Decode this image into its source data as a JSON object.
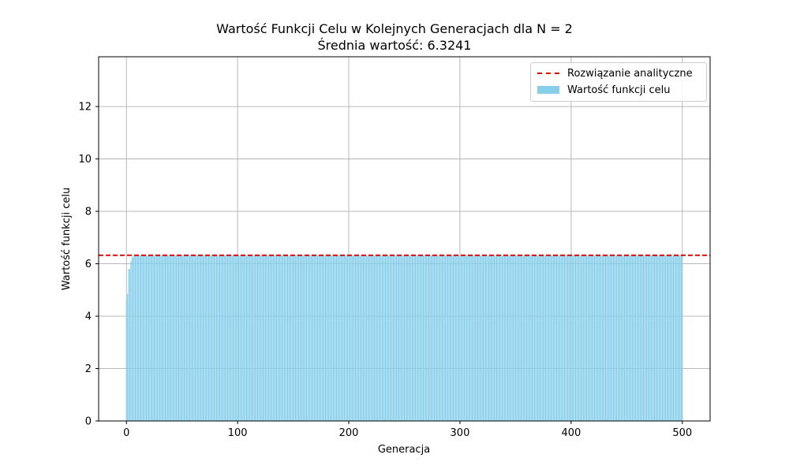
{
  "chart_data": {
    "type": "bar",
    "title": "Wartość Funkcji Celu w Kolejnych Generacjach dla N = 2",
    "subtitle": "Średnia wartość: 6.3241",
    "xlabel": "Generacja",
    "ylabel": "Wartość funkcji celu",
    "xlim": [
      -25,
      525
    ],
    "ylim": [
      0,
      13.9
    ],
    "xticks": [
      0,
      100,
      200,
      300,
      400,
      500
    ],
    "yticks": [
      0,
      2,
      4,
      6,
      8,
      10,
      12
    ],
    "grid": true,
    "legend_position": "top-right",
    "bar_color": "#87ceeb",
    "reference_line": {
      "name": "Rozwiązanie analityczne",
      "value": 6.3241,
      "color": "#e00000",
      "style": "dashed"
    },
    "series": [
      {
        "name": "Wartość funkcji celu",
        "x_start": 0,
        "x_end": 500,
        "initial_values": [
          4.65,
          4.85,
          5.8,
          5.8,
          6.1,
          6.25,
          6.28,
          6.3,
          6.3
        ],
        "steady_value": 6.3241
      }
    ]
  }
}
